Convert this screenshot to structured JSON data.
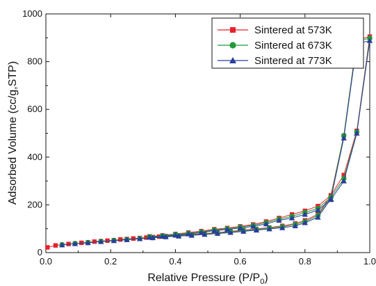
{
  "chart_data": {
    "type": "line",
    "title": "",
    "xlabel": "Relative Pressure (P/P",
    "xlabel_sub": "0",
    "xlabel_close": ")",
    "ylabel": "Adsorbed Volume (cc/g,STP)",
    "xlim": [
      0.0,
      1.0
    ],
    "ylim": [
      0,
      1000
    ],
    "xticks": [
      "0.0",
      "0.2",
      "0.4",
      "0.6",
      "0.8",
      "1.0"
    ],
    "xtick_values": [
      0,
      0.2,
      0.4,
      0.6,
      0.8,
      1.0
    ],
    "yticks": [
      "0",
      "200",
      "400",
      "600",
      "800",
      "1000"
    ],
    "ytick_values": [
      0,
      200,
      400,
      600,
      800,
      1000
    ],
    "grid": false,
    "legend_position": "top-right",
    "series": [
      {
        "name": "Sintered at 573K",
        "color": "#e8212b",
        "marker": "square",
        "x": [
          0.005,
          0.03,
          0.05,
          0.07,
          0.09,
          0.11,
          0.13,
          0.15,
          0.17,
          0.19,
          0.21,
          0.23,
          0.25,
          0.27,
          0.29,
          0.31,
          0.33,
          0.35,
          0.37,
          0.41,
          0.45,
          0.49,
          0.53,
          0.57,
          0.61,
          0.65,
          0.69,
          0.73,
          0.77,
          0.8,
          0.84,
          0.88,
          0.92,
          0.96,
          1.0,
          0.96,
          0.92,
          0.88,
          0.84,
          0.8,
          0.76,
          0.72,
          0.68,
          0.64,
          0.6,
          0.56,
          0.52,
          0.48,
          0.44,
          0.4,
          0.36,
          0.32
        ],
        "y": [
          22,
          30,
          33,
          36,
          38,
          41,
          43,
          46,
          48,
          50,
          52,
          55,
          57,
          59,
          61,
          63,
          65,
          67,
          69,
          72,
          76,
          80,
          84,
          89,
          94,
          99,
          105,
          112,
          122,
          135,
          160,
          240,
          490,
          890,
          905,
          510,
          325,
          240,
          195,
          175,
          160,
          145,
          130,
          118,
          110,
          103,
          98,
          90,
          84,
          78,
          72,
          68
        ]
      },
      {
        "name": "Sintered at 673K",
        "color": "#1f9b3a",
        "marker": "circle",
        "x": [
          0.05,
          0.09,
          0.13,
          0.17,
          0.21,
          0.25,
          0.29,
          0.33,
          0.37,
          0.41,
          0.45,
          0.49,
          0.53,
          0.57,
          0.61,
          0.65,
          0.69,
          0.73,
          0.77,
          0.8,
          0.84,
          0.88,
          0.92,
          0.96,
          1.0,
          0.96,
          0.92,
          0.88,
          0.84,
          0.8,
          0.76,
          0.72,
          0.68,
          0.64,
          0.6,
          0.56,
          0.52,
          0.48,
          0.44,
          0.4,
          0.36,
          0.32
        ],
        "y": [
          33,
          38,
          42,
          47,
          51,
          55,
          59,
          63,
          67,
          71,
          74,
          78,
          82,
          87,
          92,
          97,
          103,
          108,
          118,
          130,
          155,
          232,
          490,
          885,
          898,
          505,
          310,
          232,
          185,
          168,
          152,
          140,
          125,
          114,
          107,
          100,
          95,
          87,
          81,
          76,
          70,
          66
        ]
      },
      {
        "name": "Sintered at 773K",
        "color": "#2a3d9a",
        "marker": "triangle",
        "x": [
          0.05,
          0.09,
          0.13,
          0.17,
          0.21,
          0.25,
          0.29,
          0.33,
          0.37,
          0.41,
          0.45,
          0.49,
          0.53,
          0.57,
          0.61,
          0.65,
          0.69,
          0.73,
          0.77,
          0.8,
          0.84,
          0.88,
          0.92,
          0.96,
          1.0,
          0.96,
          0.92,
          0.88,
          0.84,
          0.8,
          0.76,
          0.72,
          0.68,
          0.64,
          0.6,
          0.56,
          0.52,
          0.48,
          0.44,
          0.4,
          0.36,
          0.32
        ],
        "y": [
          32,
          37,
          41,
          46,
          50,
          54,
          58,
          62,
          66,
          69,
          72,
          76,
          80,
          84,
          89,
          94,
          99,
          104,
          112,
          125,
          148,
          225,
          480,
          875,
          888,
          500,
          300,
          222,
          178,
          160,
          145,
          135,
          120,
          110,
          103,
          97,
          92,
          84,
          78,
          73,
          68,
          64
        ]
      }
    ]
  }
}
